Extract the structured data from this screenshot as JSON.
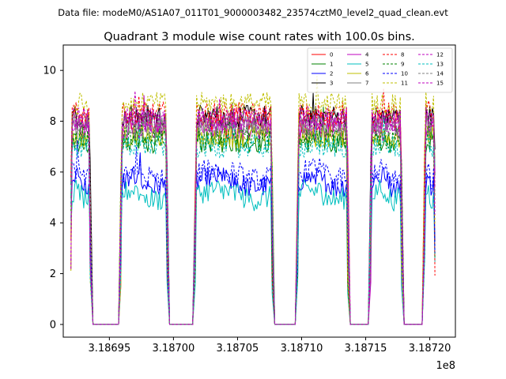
{
  "figure": {
    "suptitle": "Data file: modeM0/AS1A07_011T01_9000003482_23574cztM0_level2_quad_clean.evt"
  },
  "chart_data": {
    "type": "line",
    "title": "Quadrant 3 module wise count rates with 100.0s bins.",
    "xlabel": "",
    "ylabel": "",
    "x_offset_label": "1e8",
    "xlim": [
      318691400,
      318722000
    ],
    "ylim": [
      -0.5,
      11
    ],
    "x_ticks": [
      318695000,
      318700000,
      318705000,
      318710000,
      318715000,
      318720000
    ],
    "x_tick_labels": [
      "3.18695",
      "3.18700",
      "3.18705",
      "3.18710",
      "3.18715",
      "3.18720"
    ],
    "y_ticks": [
      0,
      2,
      4,
      6,
      8,
      10
    ],
    "y_tick_labels": [
      "0",
      "2",
      "4",
      "6",
      "8",
      "10"
    ],
    "legend_position": "top-right",
    "bin_size_s": 100,
    "segments": [
      {
        "start": 318692000,
        "end": 318693520
      },
      {
        "start": 318695900,
        "end": 318699500
      },
      {
        "start": 318701700,
        "end": 318707700
      },
      {
        "start": 318709700,
        "end": 318713600
      },
      {
        "start": 318715400,
        "end": 318717800
      },
      {
        "start": 318719600,
        "end": 318720400
      }
    ],
    "gap_level": 0,
    "series": [
      {
        "name": "0",
        "color": "#ff0000",
        "dash": "solid",
        "mean": 8.0
      },
      {
        "name": "1",
        "color": "#008000",
        "dash": "solid",
        "mean": 7.2
      },
      {
        "name": "2",
        "color": "#0000ff",
        "dash": "solid",
        "mean": 5.6
      },
      {
        "name": "3",
        "color": "#000000",
        "dash": "solid",
        "mean": 8.2
      },
      {
        "name": "4",
        "color": "#bf00bf",
        "dash": "solid",
        "mean": 7.7
      },
      {
        "name": "5",
        "color": "#00bfbf",
        "dash": "solid",
        "mean": 5.1
      },
      {
        "name": "6",
        "color": "#bfbf00",
        "dash": "solid",
        "mean": 7.4
      },
      {
        "name": "7",
        "color": "#808080",
        "dash": "solid",
        "mean": 7.9
      },
      {
        "name": "8",
        "color": "#ff0000",
        "dash": "dashed",
        "mean": 8.3
      },
      {
        "name": "9",
        "color": "#008000",
        "dash": "dashed",
        "mean": 7.3
      },
      {
        "name": "10",
        "color": "#0000ff",
        "dash": "dashed",
        "mean": 5.9
      },
      {
        "name": "11",
        "color": "#bfbf00",
        "dash": "dashed",
        "mean": 8.7
      },
      {
        "name": "12",
        "color": "#bf00bf",
        "dash": "dashed",
        "mean": 8.1
      },
      {
        "name": "13",
        "color": "#00bfbf",
        "dash": "dashed",
        "mean": 7.0
      },
      {
        "name": "14",
        "color": "#808080",
        "dash": "dashed",
        "mean": 7.8
      },
      {
        "name": "15",
        "color": "#bf00bf",
        "dash": "dashed",
        "mean": 8.0
      }
    ]
  }
}
